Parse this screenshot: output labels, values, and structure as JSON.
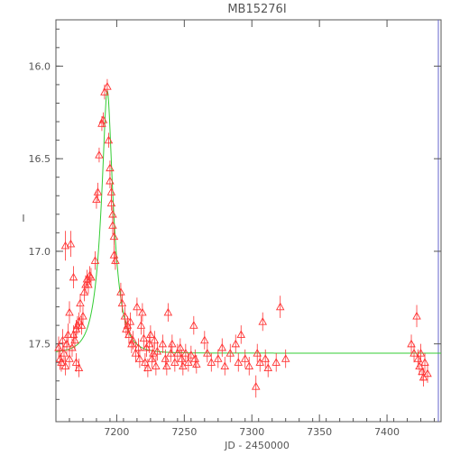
{
  "chart_data": {
    "type": "scatter",
    "title": "MB15276I",
    "xlabel": "JD - 2450000",
    "ylabel": "I",
    "xlim": [
      7155,
      7440
    ],
    "ylim": [
      17.92,
      15.75
    ],
    "y_inverted": true,
    "xticks": [
      7200,
      7250,
      7300,
      7350,
      7400
    ],
    "yticks": [
      16.0,
      16.5,
      17.0,
      17.5
    ],
    "xtick_labels": [
      "7200",
      "7250",
      "7300",
      "7350",
      "7400"
    ],
    "ytick_labels": [
      "16.0",
      "16.5",
      "17.0",
      "17.5"
    ],
    "grid": false,
    "model": {
      "color": "#33cc33",
      "baseline": 17.55,
      "t0": 7193,
      "peak": 16.13,
      "tE": 10
    },
    "series": [
      {
        "marker": "triangle",
        "color": "#ff3333",
        "points": [
          {
            "x": 7157,
            "y": 17.52,
            "err": 0.06
          },
          {
            "x": 7158,
            "y": 17.58,
            "err": 0.06
          },
          {
            "x": 7159,
            "y": 17.6,
            "err": 0.05
          },
          {
            "x": 7160,
            "y": 17.48,
            "err": 0.06
          },
          {
            "x": 7161,
            "y": 17.55,
            "err": 0.05
          },
          {
            "x": 7162,
            "y": 17.62,
            "err": 0.05
          },
          {
            "x": 7162,
            "y": 16.97,
            "err": 0.08
          },
          {
            "x": 7163,
            "y": 17.5,
            "err": 0.06
          },
          {
            "x": 7164,
            "y": 17.45,
            "err": 0.06
          },
          {
            "x": 7165,
            "y": 17.33,
            "err": 0.06
          },
          {
            "x": 7165,
            "y": 17.58,
            "err": 0.05
          },
          {
            "x": 7166,
            "y": 16.96,
            "err": 0.07
          },
          {
            "x": 7167,
            "y": 17.52,
            "err": 0.05
          },
          {
            "x": 7168,
            "y": 17.14,
            "err": 0.06
          },
          {
            "x": 7168,
            "y": 17.45,
            "err": 0.05
          },
          {
            "x": 7169,
            "y": 17.48,
            "err": 0.05
          },
          {
            "x": 7170,
            "y": 17.42,
            "err": 0.05
          },
          {
            "x": 7170,
            "y": 17.6,
            "err": 0.05
          },
          {
            "x": 7171,
            "y": 17.4,
            "err": 0.05
          },
          {
            "x": 7172,
            "y": 17.38,
            "err": 0.05
          },
          {
            "x": 7172,
            "y": 17.63,
            "err": 0.05
          },
          {
            "x": 7173,
            "y": 17.28,
            "err": 0.05
          },
          {
            "x": 7174,
            "y": 17.4,
            "err": 0.05
          },
          {
            "x": 7175,
            "y": 17.35,
            "err": 0.05
          },
          {
            "x": 7176,
            "y": 17.22,
            "err": 0.05
          },
          {
            "x": 7177,
            "y": 17.18,
            "err": 0.05
          },
          {
            "x": 7178,
            "y": 17.15,
            "err": 0.05
          },
          {
            "x": 7179,
            "y": 17.18,
            "err": 0.05
          },
          {
            "x": 7180,
            "y": 17.13,
            "err": 0.05
          },
          {
            "x": 7181,
            "y": 17.14,
            "err": 0.05
          },
          {
            "x": 7184,
            "y": 17.05,
            "err": 0.05
          },
          {
            "x": 7185,
            "y": 16.72,
            "err": 0.05
          },
          {
            "x": 7186,
            "y": 16.68,
            "err": 0.05
          },
          {
            "x": 7187,
            "y": 16.48,
            "err": 0.04
          },
          {
            "x": 7189,
            "y": 16.31,
            "err": 0.04
          },
          {
            "x": 7190,
            "y": 16.29,
            "err": 0.04
          },
          {
            "x": 7191,
            "y": 16.14,
            "err": 0.04
          },
          {
            "x": 7193,
            "y": 16.11,
            "err": 0.04
          },
          {
            "x": 7194,
            "y": 16.4,
            "err": 0.04
          },
          {
            "x": 7195,
            "y": 16.55,
            "err": 0.04
          },
          {
            "x": 7195,
            "y": 16.62,
            "err": 0.04
          },
          {
            "x": 7196,
            "y": 16.68,
            "err": 0.04
          },
          {
            "x": 7196,
            "y": 16.74,
            "err": 0.04
          },
          {
            "x": 7197,
            "y": 16.8,
            "err": 0.04
          },
          {
            "x": 7197,
            "y": 16.86,
            "err": 0.05
          },
          {
            "x": 7198,
            "y": 16.92,
            "err": 0.05
          },
          {
            "x": 7198,
            "y": 17.02,
            "err": 0.05
          },
          {
            "x": 7199,
            "y": 17.05,
            "err": 0.05
          },
          {
            "x": 7203,
            "y": 17.22,
            "err": 0.05
          },
          {
            "x": 7204,
            "y": 17.28,
            "err": 0.05
          },
          {
            "x": 7206,
            "y": 17.35,
            "err": 0.05
          },
          {
            "x": 7207,
            "y": 17.42,
            "err": 0.05
          },
          {
            "x": 7208,
            "y": 17.4,
            "err": 0.05
          },
          {
            "x": 7209,
            "y": 17.45,
            "err": 0.05
          },
          {
            "x": 7210,
            "y": 17.38,
            "err": 0.05
          },
          {
            "x": 7211,
            "y": 17.5,
            "err": 0.05
          },
          {
            "x": 7212,
            "y": 17.48,
            "err": 0.05
          },
          {
            "x": 7214,
            "y": 17.55,
            "err": 0.05
          },
          {
            "x": 7215,
            "y": 17.3,
            "err": 0.05
          },
          {
            "x": 7216,
            "y": 17.52,
            "err": 0.05
          },
          {
            "x": 7217,
            "y": 17.58,
            "err": 0.05
          },
          {
            "x": 7218,
            "y": 17.4,
            "err": 0.05
          },
          {
            "x": 7219,
            "y": 17.33,
            "err": 0.05
          },
          {
            "x": 7220,
            "y": 17.47,
            "err": 0.05
          },
          {
            "x": 7221,
            "y": 17.6,
            "err": 0.05
          },
          {
            "x": 7222,
            "y": 17.52,
            "err": 0.05
          },
          {
            "x": 7223,
            "y": 17.63,
            "err": 0.05
          },
          {
            "x": 7224,
            "y": 17.5,
            "err": 0.05
          },
          {
            "x": 7225,
            "y": 17.45,
            "err": 0.05
          },
          {
            "x": 7226,
            "y": 17.58,
            "err": 0.05
          },
          {
            "x": 7227,
            "y": 17.55,
            "err": 0.05
          },
          {
            "x": 7228,
            "y": 17.48,
            "err": 0.05
          },
          {
            "x": 7229,
            "y": 17.62,
            "err": 0.05
          },
          {
            "x": 7230,
            "y": 17.54,
            "err": 0.05
          },
          {
            "x": 7234,
            "y": 17.5,
            "err": 0.05
          },
          {
            "x": 7236,
            "y": 17.58,
            "err": 0.05
          },
          {
            "x": 7237,
            "y": 17.62,
            "err": 0.05
          },
          {
            "x": 7238,
            "y": 17.33,
            "err": 0.05
          },
          {
            "x": 7240,
            "y": 17.55,
            "err": 0.05
          },
          {
            "x": 7241,
            "y": 17.5,
            "err": 0.05
          },
          {
            "x": 7243,
            "y": 17.6,
            "err": 0.05
          },
          {
            "x": 7245,
            "y": 17.55,
            "err": 0.05
          },
          {
            "x": 7247,
            "y": 17.52,
            "err": 0.05
          },
          {
            "x": 7248,
            "y": 17.58,
            "err": 0.05
          },
          {
            "x": 7249,
            "y": 17.62,
            "err": 0.05
          },
          {
            "x": 7251,
            "y": 17.55,
            "err": 0.05
          },
          {
            "x": 7253,
            "y": 17.6,
            "err": 0.05
          },
          {
            "x": 7255,
            "y": 17.56,
            "err": 0.05
          },
          {
            "x": 7257,
            "y": 17.4,
            "err": 0.05
          },
          {
            "x": 7258,
            "y": 17.58,
            "err": 0.05
          },
          {
            "x": 7259,
            "y": 17.61,
            "err": 0.05
          },
          {
            "x": 7265,
            "y": 17.48,
            "err": 0.05
          },
          {
            "x": 7267,
            "y": 17.55,
            "err": 0.05
          },
          {
            "x": 7270,
            "y": 17.6,
            "err": 0.05
          },
          {
            "x": 7275,
            "y": 17.58,
            "err": 0.05
          },
          {
            "x": 7278,
            "y": 17.52,
            "err": 0.05
          },
          {
            "x": 7280,
            "y": 17.62,
            "err": 0.05
          },
          {
            "x": 7284,
            "y": 17.55,
            "err": 0.05
          },
          {
            "x": 7288,
            "y": 17.5,
            "err": 0.05
          },
          {
            "x": 7290,
            "y": 17.6,
            "err": 0.05
          },
          {
            "x": 7292,
            "y": 17.45,
            "err": 0.05
          },
          {
            "x": 7295,
            "y": 17.58,
            "err": 0.05
          },
          {
            "x": 7298,
            "y": 17.62,
            "err": 0.05
          },
          {
            "x": 7303,
            "y": 17.73,
            "err": 0.06
          },
          {
            "x": 7304,
            "y": 17.55,
            "err": 0.05
          },
          {
            "x": 7306,
            "y": 17.6,
            "err": 0.05
          },
          {
            "x": 7308,
            "y": 17.38,
            "err": 0.05
          },
          {
            "x": 7310,
            "y": 17.58,
            "err": 0.05
          },
          {
            "x": 7312,
            "y": 17.63,
            "err": 0.05
          },
          {
            "x": 7318,
            "y": 17.6,
            "err": 0.05
          },
          {
            "x": 7321,
            "y": 17.3,
            "err": 0.06
          },
          {
            "x": 7325,
            "y": 17.58,
            "err": 0.05
          },
          {
            "x": 7418,
            "y": 17.5,
            "err": 0.05
          },
          {
            "x": 7420,
            "y": 17.55,
            "err": 0.05
          },
          {
            "x": 7422,
            "y": 17.35,
            "err": 0.06
          },
          {
            "x": 7423,
            "y": 17.58,
            "err": 0.05
          },
          {
            "x": 7424,
            "y": 17.62,
            "err": 0.05
          },
          {
            "x": 7425,
            "y": 17.55,
            "err": 0.05
          },
          {
            "x": 7426,
            "y": 17.65,
            "err": 0.05
          },
          {
            "x": 7427,
            "y": 17.68,
            "err": 0.05
          },
          {
            "x": 7428,
            "y": 17.6,
            "err": 0.05
          },
          {
            "x": 7430,
            "y": 17.66,
            "err": 0.05
          }
        ]
      }
    ]
  }
}
